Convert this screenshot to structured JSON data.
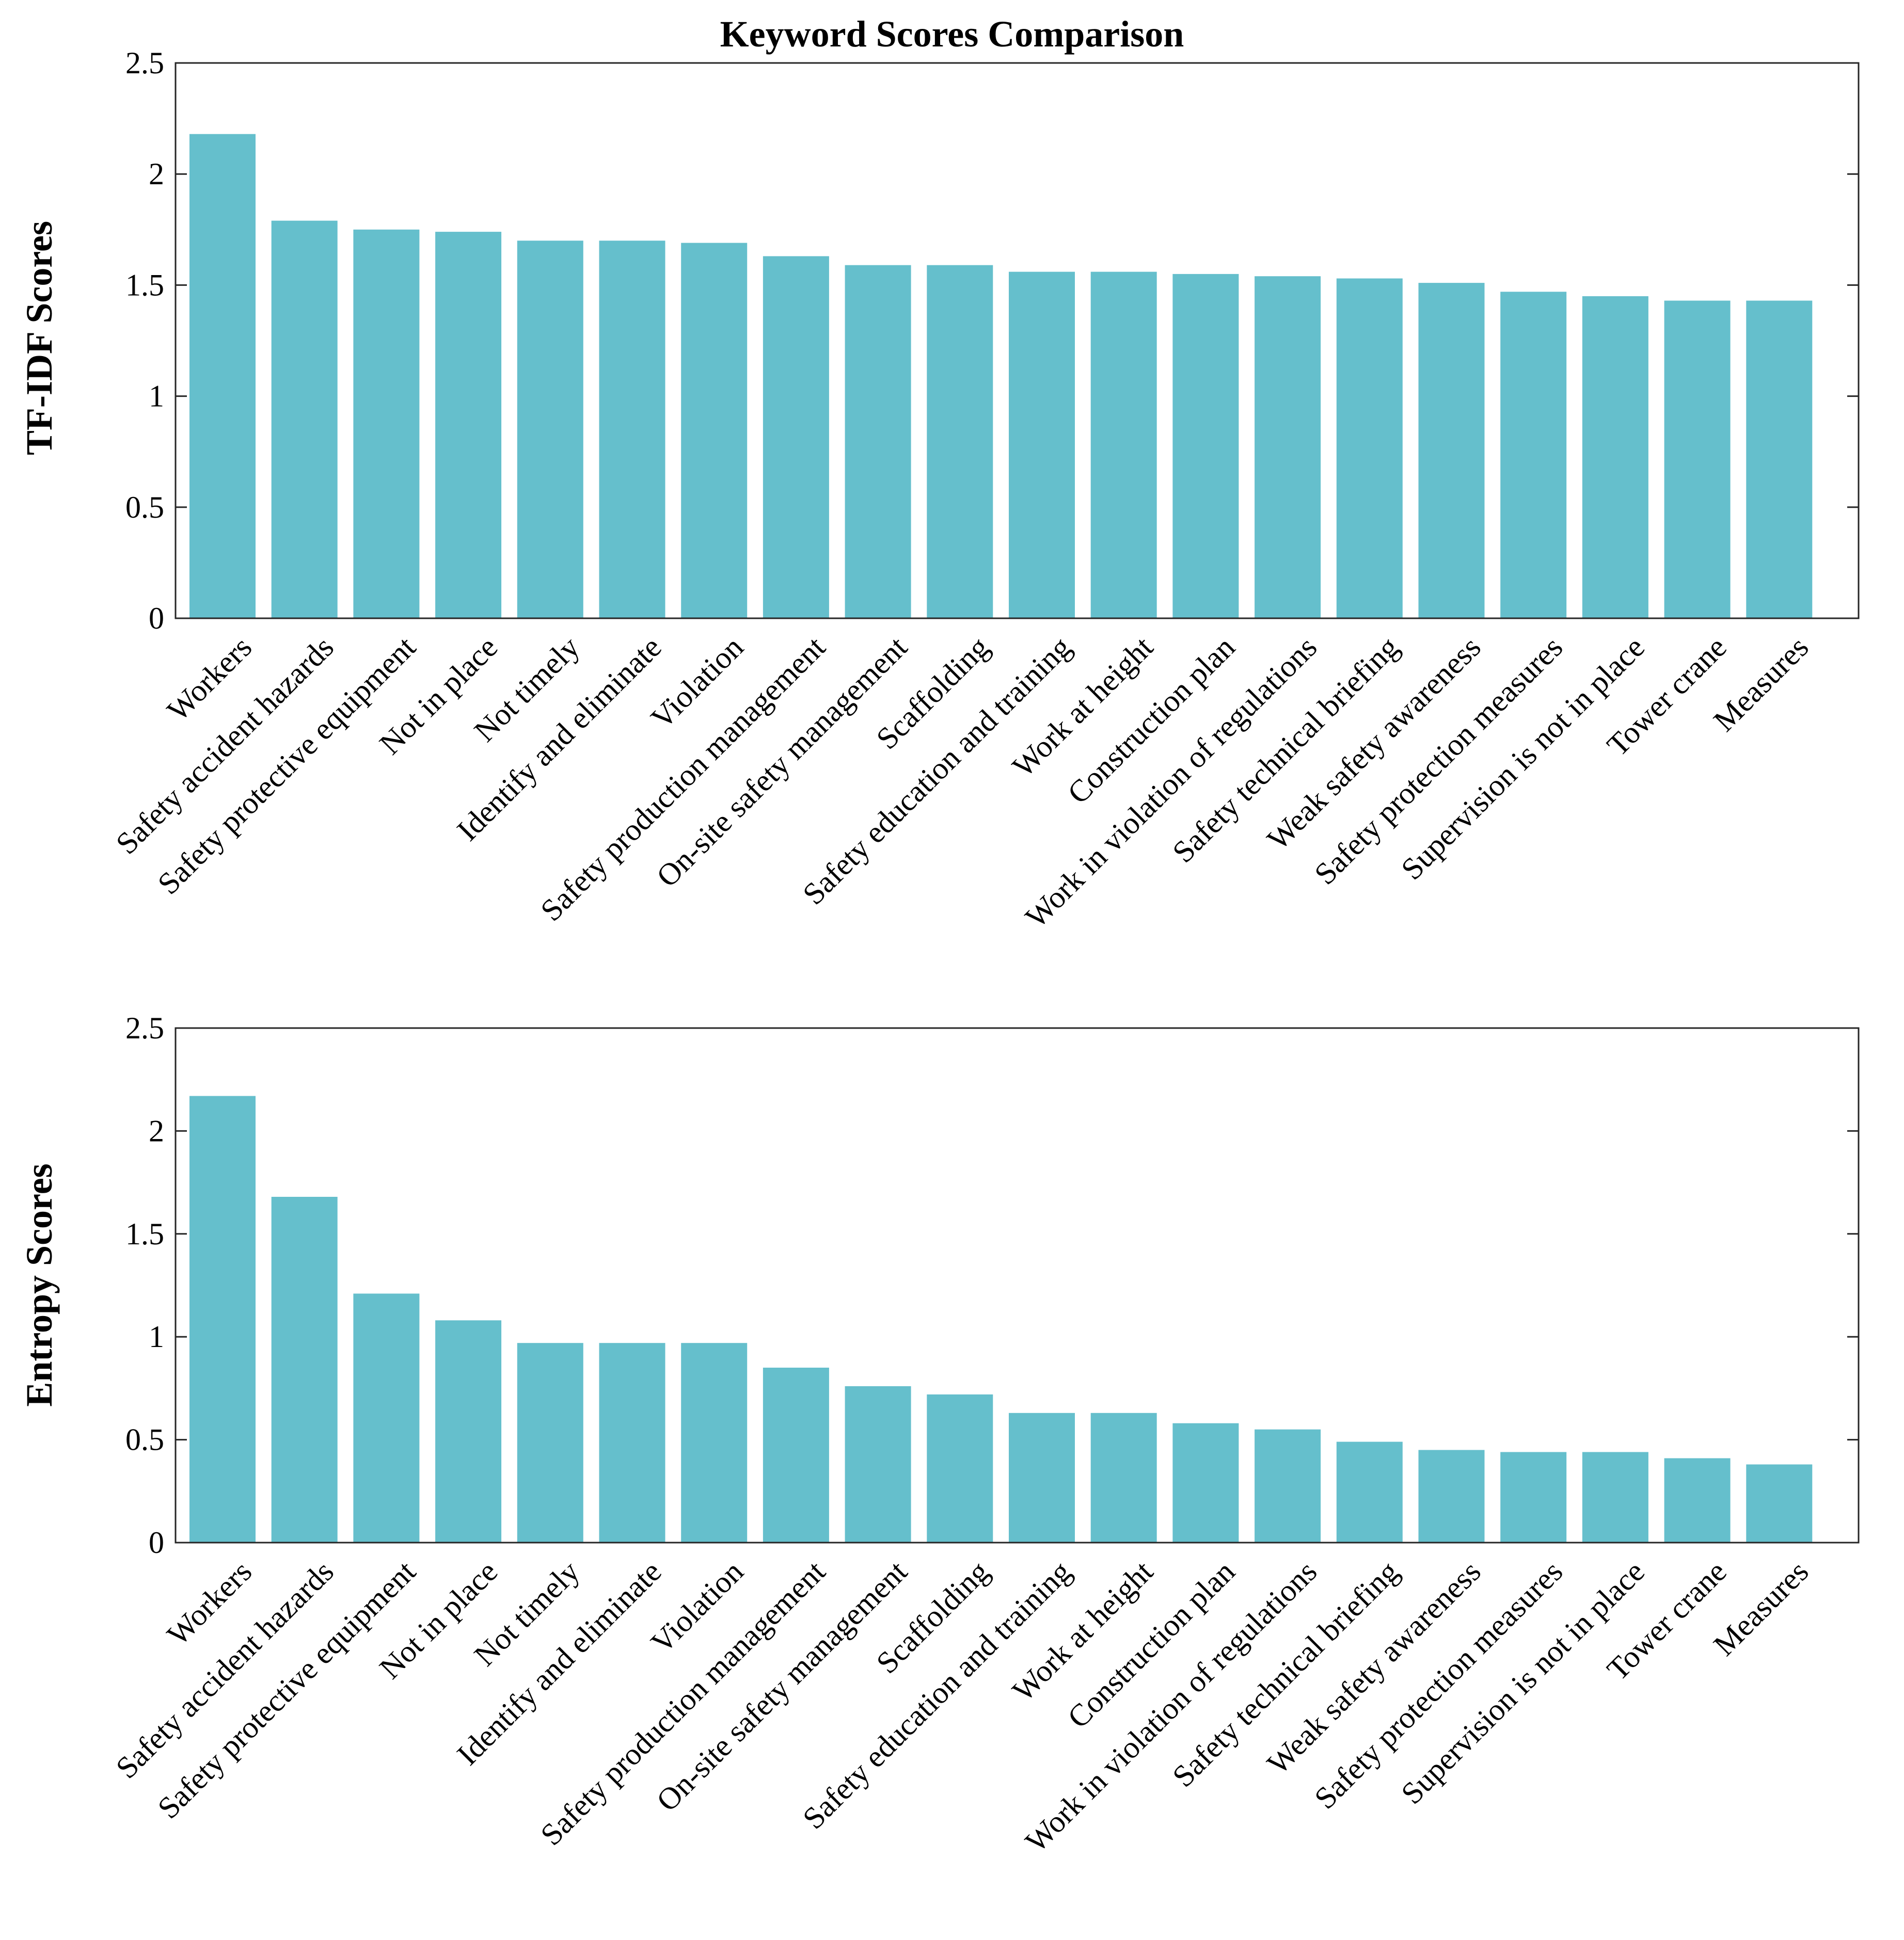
{
  "chart_data": [
    {
      "type": "bar",
      "title": "Keyword Scores Comparison",
      "xlabel": "",
      "ylabel": "TF-IDF Scores",
      "ylim": [
        0,
        2.5
      ],
      "yticks": [
        "0",
        "0.5",
        "1",
        "1.5",
        "2",
        "2.5"
      ],
      "grid": false,
      "bar_color": "#65bfcc",
      "categories": [
        "Workers",
        "Safety accident hazards",
        "Safety protective equipment",
        "Not in place",
        "Not timely",
        "Identify and eliminate",
        "Violation",
        "Safety production management",
        "On-site safety management",
        "Scaffolding",
        "Safety education and training",
        "Work at height",
        "Construction plan",
        "Work in violation of regulations",
        "Safety technical briefing",
        "Weak safety awareness",
        "Safety protection measures",
        "Supervision is not in place",
        "Tower crane",
        "Measures"
      ],
      "values": [
        2.18,
        1.79,
        1.75,
        1.74,
        1.7,
        1.7,
        1.69,
        1.63,
        1.59,
        1.59,
        1.56,
        1.56,
        1.55,
        1.54,
        1.53,
        1.51,
        1.47,
        1.45,
        1.43,
        1.43
      ]
    },
    {
      "type": "bar",
      "title": "",
      "xlabel": "",
      "ylabel": "Entropy Scores",
      "ylim": [
        0,
        2.5
      ],
      "yticks": [
        "0",
        "0.5",
        "1",
        "1.5",
        "2",
        "2.5"
      ],
      "grid": false,
      "bar_color": "#65bfcc",
      "categories": [
        "Workers",
        "Safety accident hazards",
        "Safety protective equipment",
        "Not in place",
        "Not timely",
        "Identify and eliminate",
        "Violation",
        "Safety production management",
        "On-site safety management",
        "Scaffolding",
        "Safety education and training",
        "Work at height",
        "Construction plan",
        "Work in violation of regulations",
        "Safety technical briefing",
        "Weak safety awareness",
        "Safety protection measures",
        "Supervision is not in place",
        "Tower crane",
        "Measures"
      ],
      "values": [
        2.17,
        1.68,
        1.21,
        1.08,
        0.97,
        0.97,
        0.97,
        0.85,
        0.76,
        0.72,
        0.63,
        0.63,
        0.58,
        0.55,
        0.49,
        0.45,
        0.44,
        0.44,
        0.41,
        0.38
      ]
    }
  ]
}
